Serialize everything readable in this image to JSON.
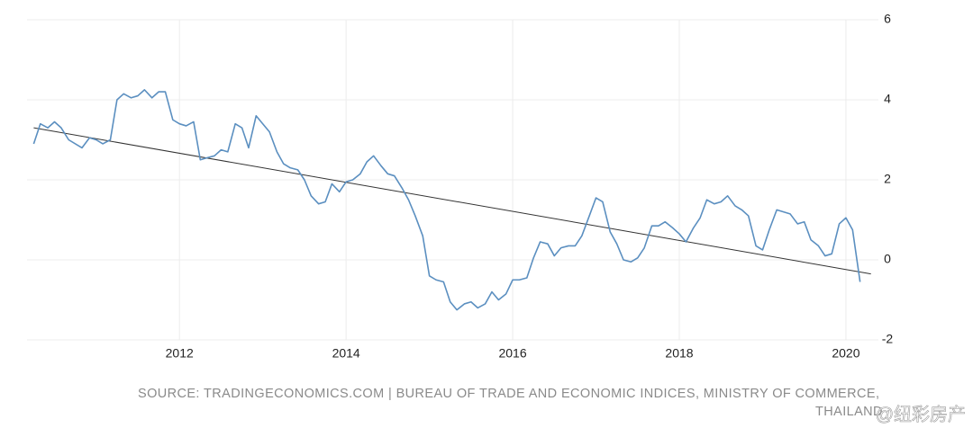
{
  "chart_data": {
    "type": "line",
    "x": [
      2010.25,
      2010.33,
      2010.42,
      2010.5,
      2010.58,
      2010.67,
      2010.83,
      2010.92,
      2011.0,
      2011.08,
      2011.17,
      2011.25,
      2011.33,
      2011.42,
      2011.5,
      2011.58,
      2011.67,
      2011.75,
      2011.83,
      2011.92,
      2012.0,
      2012.08,
      2012.17,
      2012.25,
      2012.33,
      2012.42,
      2012.5,
      2012.58,
      2012.67,
      2012.75,
      2012.83,
      2012.92,
      2013.0,
      2013.08,
      2013.17,
      2013.25,
      2013.33,
      2013.42,
      2013.5,
      2013.58,
      2013.67,
      2013.75,
      2013.83,
      2013.92,
      2014.0,
      2014.08,
      2014.17,
      2014.25,
      2014.33,
      2014.42,
      2014.5,
      2014.58,
      2014.67,
      2014.75,
      2014.83,
      2014.92,
      2015.0,
      2015.08,
      2015.17,
      2015.25,
      2015.33,
      2015.42,
      2015.5,
      2015.58,
      2015.67,
      2015.75,
      2015.83,
      2015.92,
      2016.0,
      2016.08,
      2016.17,
      2016.25,
      2016.33,
      2016.42,
      2016.5,
      2016.58,
      2016.67,
      2016.75,
      2016.83,
      2016.92,
      2017.0,
      2017.08,
      2017.17,
      2017.25,
      2017.33,
      2017.42,
      2017.5,
      2017.58,
      2017.67,
      2017.75,
      2017.83,
      2017.92,
      2018.0,
      2018.08,
      2018.17,
      2018.25,
      2018.33,
      2018.42,
      2018.5,
      2018.58,
      2018.67,
      2018.75,
      2018.83,
      2018.92,
      2019.0,
      2019.08,
      2019.17,
      2019.25,
      2019.33,
      2019.42,
      2019.5,
      2019.58,
      2019.67,
      2019.75,
      2019.83,
      2019.92,
      2020.0,
      2020.08,
      2020.17
    ],
    "series": [
      {
        "color": "#5b8fc0",
        "values": [
          2.9,
          3.4,
          3.3,
          3.45,
          3.3,
          3.0,
          2.8,
          3.05,
          3.0,
          2.9,
          3.0,
          4.0,
          4.15,
          4.05,
          4.1,
          4.25,
          4.05,
          4.2,
          4.2,
          3.5,
          3.4,
          3.35,
          3.45,
          2.5,
          2.55,
          2.6,
          2.75,
          2.7,
          3.4,
          3.3,
          2.8,
          3.6,
          3.4,
          3.2,
          2.7,
          2.4,
          2.3,
          2.25,
          2.0,
          1.6,
          1.4,
          1.45,
          1.9,
          1.7,
          1.95,
          2.0,
          2.15,
          2.45,
          2.6,
          2.35,
          2.15,
          2.1,
          1.8,
          1.5,
          1.1,
          0.6,
          -0.4,
          -0.5,
          -0.55,
          -1.05,
          -1.25,
          -1.1,
          -1.05,
          -1.2,
          -1.1,
          -0.8,
          -1.0,
          -0.85,
          -0.5,
          -0.5,
          -0.45,
          0.05,
          0.45,
          0.4,
          0.1,
          0.3,
          0.35,
          0.35,
          0.6,
          1.1,
          1.55,
          1.45,
          0.7,
          0.4,
          0.0,
          -0.05,
          0.05,
          0.3,
          0.85,
          0.85,
          0.95,
          0.8,
          0.65,
          0.45,
          0.8,
          1.05,
          1.5,
          1.4,
          1.45,
          1.6,
          1.35,
          1.25,
          1.1,
          0.35,
          0.25,
          0.75,
          1.25,
          1.2,
          1.15,
          0.9,
          0.95,
          0.5,
          0.35,
          0.1,
          0.15,
          0.9,
          1.05,
          0.75,
          -0.55
        ]
      }
    ],
    "trend": {
      "color": "#333333",
      "x": [
        2010.25,
        2020.3
      ],
      "values": [
        3.3,
        -0.35
      ]
    },
    "xlim": [
      2010.17,
      2020.39
    ],
    "xticks": [
      2012,
      2014,
      2016,
      2018,
      2020
    ],
    "ylim": [
      -2,
      6
    ],
    "yticks": [
      -2,
      0,
      2,
      4,
      6
    ],
    "grid": true,
    "source": "SOURCE: TRADINGECONOMICS.COM | BUREAU OF TRADE AND ECONOMIC INDICES, MINISTRY OF COMMERCE,",
    "source_line2": "THAILAND",
    "watermark": "@纽彩房产"
  }
}
